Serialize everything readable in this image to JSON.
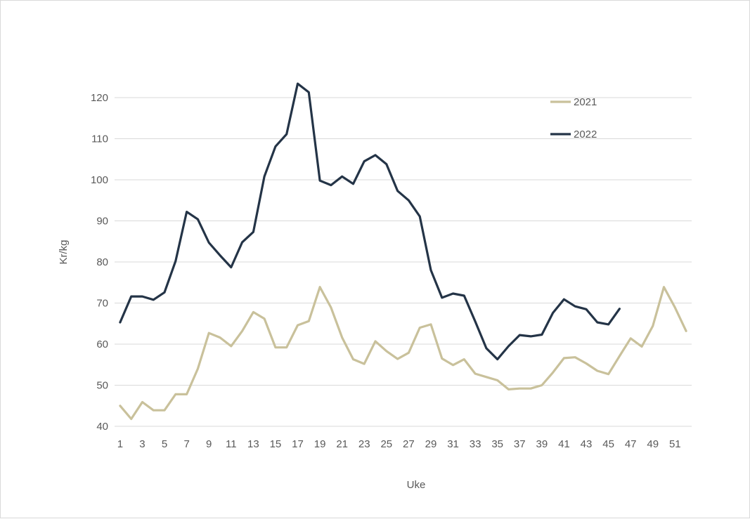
{
  "chart_data": {
    "type": "line",
    "xlabel": "Uke",
    "ylabel": "Kr/kg",
    "ylim": [
      40,
      120
    ],
    "yticks": [
      40,
      50,
      60,
      70,
      80,
      90,
      100,
      110,
      120
    ],
    "xlim": [
      1,
      52
    ],
    "xticks": [
      1,
      3,
      5,
      7,
      9,
      11,
      13,
      15,
      17,
      19,
      21,
      23,
      25,
      27,
      29,
      31,
      33,
      35,
      37,
      39,
      41,
      43,
      45,
      47,
      49,
      51
    ],
    "grid": true,
    "legend_position": "top-right",
    "series": [
      {
        "name": "2021",
        "color": "#c9c19b",
        "x": [
          1,
          2,
          3,
          4,
          5,
          6,
          7,
          8,
          9,
          10,
          11,
          12,
          13,
          14,
          15,
          16,
          17,
          18,
          19,
          20,
          21,
          22,
          23,
          24,
          25,
          26,
          27,
          28,
          29,
          30,
          31,
          32,
          33,
          34,
          35,
          36,
          37,
          38,
          39,
          40,
          41,
          42,
          43,
          44,
          45,
          46,
          47,
          48,
          49,
          50,
          51,
          52
        ],
        "values": [
          45,
          41.8,
          45.9,
          43.9,
          43.9,
          47.8,
          47.8,
          54,
          62.7,
          61.6,
          59.5,
          63.2,
          67.8,
          66.2,
          59.2,
          59.2,
          64.6,
          65.6,
          73.9,
          68.9,
          61.6,
          56.3,
          55.2,
          60.7,
          58.3,
          56.4,
          57.9,
          64,
          64.8,
          56.5,
          54.9,
          56.3,
          52.8,
          52,
          51.2,
          49,
          49.2,
          49.2,
          50,
          53.1,
          56.6,
          56.8,
          55.3,
          53.5,
          52.7,
          57.1,
          61.4,
          59.4,
          64.4,
          73.9,
          68.9,
          63.2
        ]
      },
      {
        "name": "2022",
        "color": "#243447",
        "x": [
          1,
          2,
          3,
          4,
          5,
          6,
          7,
          8,
          9,
          10,
          11,
          12,
          13,
          14,
          15,
          16,
          17,
          18,
          19,
          20,
          21,
          22,
          23,
          24,
          25,
          26,
          27,
          28,
          29,
          30,
          31,
          32,
          33,
          34,
          35,
          36,
          37,
          38,
          39,
          40,
          41,
          42,
          43,
          44,
          45,
          46
        ],
        "values": [
          65.3,
          71.6,
          71.6,
          70.8,
          72.6,
          80.2,
          92.2,
          90.4,
          84.7,
          81.6,
          78.7,
          84.8,
          87.3,
          100.8,
          108.1,
          111.1,
          123.4,
          121.3,
          99.8,
          98.7,
          100.8,
          99,
          104.5,
          106,
          103.8,
          97.3,
          95,
          91.1,
          78,
          71.3,
          72.3,
          71.8,
          65.5,
          59,
          56.3,
          59.5,
          62.2,
          61.9,
          62.3,
          67.6,
          70.9,
          69.2,
          68.5,
          65.3,
          64.8,
          68.6
        ]
      }
    ]
  }
}
